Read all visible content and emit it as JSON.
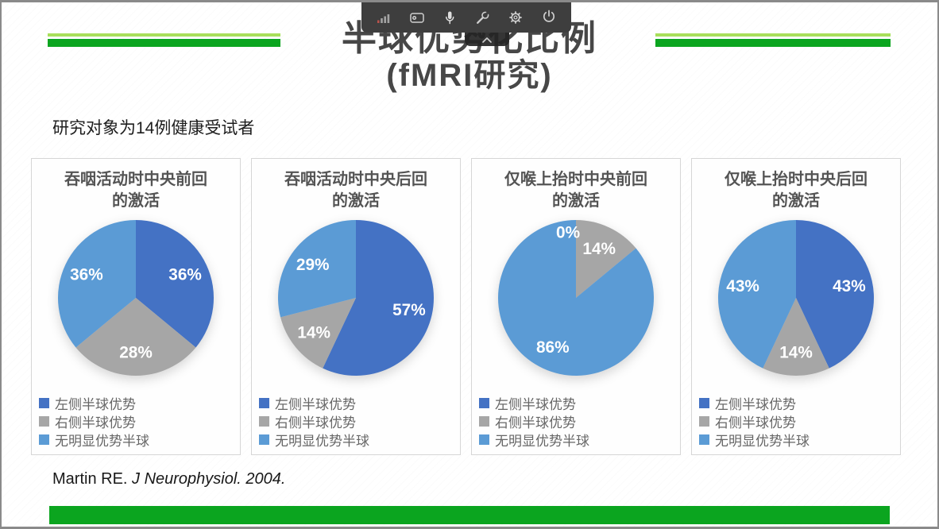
{
  "toolbar": {
    "icons": [
      {
        "name": "signal-strength-icon"
      },
      {
        "name": "screen-share-icon"
      },
      {
        "name": "microphone-icon"
      },
      {
        "name": "wrench-icon"
      },
      {
        "name": "settings-gear-icon"
      },
      {
        "name": "power-icon"
      }
    ]
  },
  "slide": {
    "title_line1": "半球优势化比例",
    "title_line2": "(fMRI研究)",
    "subtitle": "研究对象为14例健康受试者",
    "citation_author": "Martin RE.",
    "citation_source": " J Neurophysiol. 2004."
  },
  "legend": {
    "items": [
      {
        "label": "左侧半球优势",
        "color": "#4472C4"
      },
      {
        "label": "右侧半球优势",
        "color": "#A6A6A6"
      },
      {
        "label": "无明显优势半球",
        "color": "#5B9BD5"
      }
    ]
  },
  "chart_data": [
    {
      "type": "pie",
      "title": "吞咽活动时中央前回的激活",
      "title_line1": "吞咽活动时中央前回",
      "title_line2": "的激活",
      "categories": [
        "左侧半球优势",
        "右侧半球优势",
        "无明显优势半球"
      ],
      "values": [
        36,
        28,
        36
      ],
      "data_labels": [
        "36%",
        "28%",
        "36%"
      ],
      "colors": [
        "#4472C4",
        "#A6A6A6",
        "#5B9BD5"
      ],
      "legend_position": "bottom-left"
    },
    {
      "type": "pie",
      "title": "吞咽活动时中央后回的激活",
      "title_line1": "吞咽活动时中央后回",
      "title_line2": "的激活",
      "categories": [
        "左侧半球优势",
        "右侧半球优势",
        "无明显优势半球"
      ],
      "values": [
        57,
        14,
        29
      ],
      "data_labels": [
        "57%",
        "14%",
        "29%"
      ],
      "colors": [
        "#4472C4",
        "#A6A6A6",
        "#5B9BD5"
      ],
      "legend_position": "bottom-left"
    },
    {
      "type": "pie",
      "title": "仅喉上抬时中央前回的激活",
      "title_line1": "仅喉上抬时中央前回",
      "title_line2": "的激活",
      "categories": [
        "左侧半球优势",
        "右侧半球优势",
        "无明显优势半球"
      ],
      "values": [
        0,
        14,
        86
      ],
      "data_labels": [
        "0%",
        "14%",
        "86%"
      ],
      "colors": [
        "#4472C4",
        "#A6A6A6",
        "#5B9BD5"
      ],
      "legend_position": "bottom-left"
    },
    {
      "type": "pie",
      "title": "仅喉上抬时中央后回的激活",
      "title_line1": "仅喉上抬时中央后回",
      "title_line2": "的激活",
      "categories": [
        "左侧半球优势",
        "右侧半球优势",
        "无明显优势半球"
      ],
      "values": [
        43,
        14,
        43
      ],
      "data_labels": [
        "43%",
        "14%",
        "43%"
      ],
      "colors": [
        "#4472C4",
        "#A6A6A6",
        "#5B9BD5"
      ],
      "legend_position": "bottom-left"
    }
  ],
  "theme": {
    "green_dark": "#0BA51F",
    "green_light": "#A8DF5B",
    "toolbar_bg": "#3E3E3E",
    "frame_border": "#8A8A8A",
    "pie_left": "#4472C4",
    "pie_right": "#A6A6A6",
    "pie_none": "#5B9BD5"
  }
}
